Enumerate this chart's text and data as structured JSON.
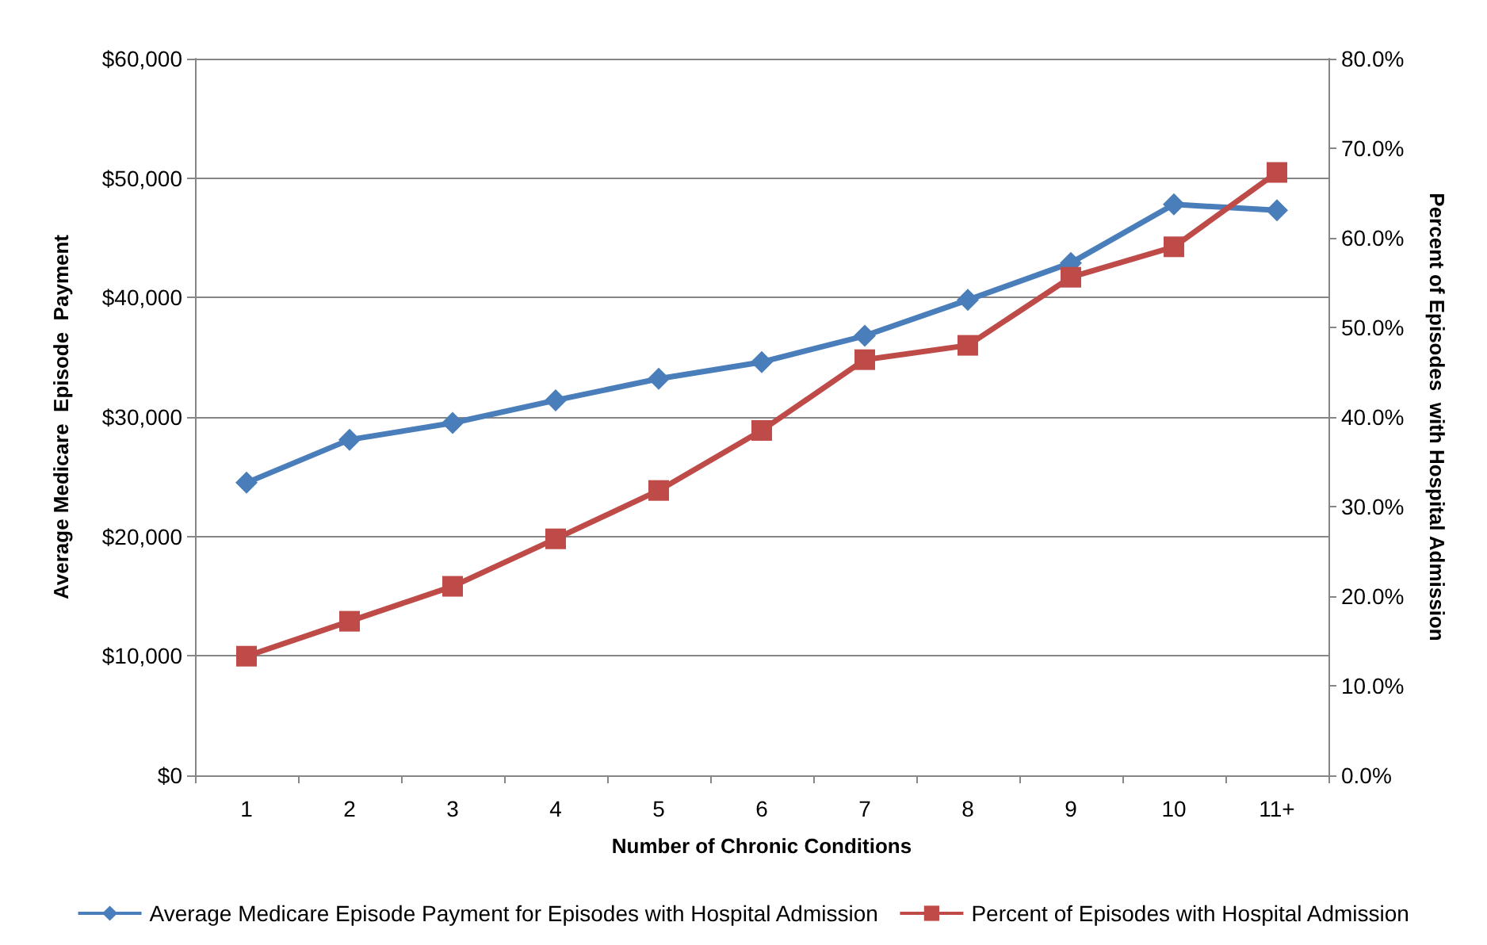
{
  "chart_data": {
    "type": "line",
    "xlabel": "Number of Chronic Conditions",
    "ylabel": "Average Medicare  Episode  Payment",
    "y2label": "Percent of Episodes  with Hospital Admission",
    "categories": [
      "1",
      "2",
      "3",
      "4",
      "5",
      "6",
      "7",
      "8",
      "9",
      "10",
      "11+"
    ],
    "series": [
      {
        "name": "Average Medicare Episode Payment for Episodes with Hospital Admission",
        "color": "#4a7ebb",
        "marker": "diamond",
        "values": [
          24500,
          28100,
          29500,
          31400,
          33200,
          34600,
          36800,
          39800,
          42900,
          47800,
          47300
        ]
      },
      {
        "name": "Percent of Episodes with Hospital Admission",
        "color": "#be4b48",
        "marker": "square",
        "axis": "y2",
        "values": [
          13.3,
          17.2,
          21.1,
          26.4,
          31.8,
          38.5,
          46.4,
          48.0,
          55.6,
          59.0,
          67.3
        ]
      }
    ],
    "ylim": [
      0,
      60000
    ],
    "yticks": [
      {
        "value": 0,
        "label": "$0"
      },
      {
        "value": 10000,
        "label": "$10,000"
      },
      {
        "value": 20000,
        "label": "$20,000"
      },
      {
        "value": 30000,
        "label": "$30,000"
      },
      {
        "value": 40000,
        "label": "$40,000"
      },
      {
        "value": 50000,
        "label": "$50,000"
      },
      {
        "value": 60000,
        "label": "$60,000"
      }
    ],
    "y2lim": [
      0,
      80
    ],
    "y2ticks": [
      {
        "value": 0,
        "label": "0.0%"
      },
      {
        "value": 10,
        "label": "10.0%"
      },
      {
        "value": 20,
        "label": "20.0%"
      },
      {
        "value": 30,
        "label": "30.0%"
      },
      {
        "value": 40,
        "label": "40.0%"
      },
      {
        "value": 50,
        "label": "50.0%"
      },
      {
        "value": 60,
        "label": "60.0%"
      },
      {
        "value": 70,
        "label": "70.0%"
      },
      {
        "value": 80,
        "label": "80.0%"
      }
    ],
    "grid": "y",
    "legend": "bottom",
    "line_style": "solid"
  }
}
